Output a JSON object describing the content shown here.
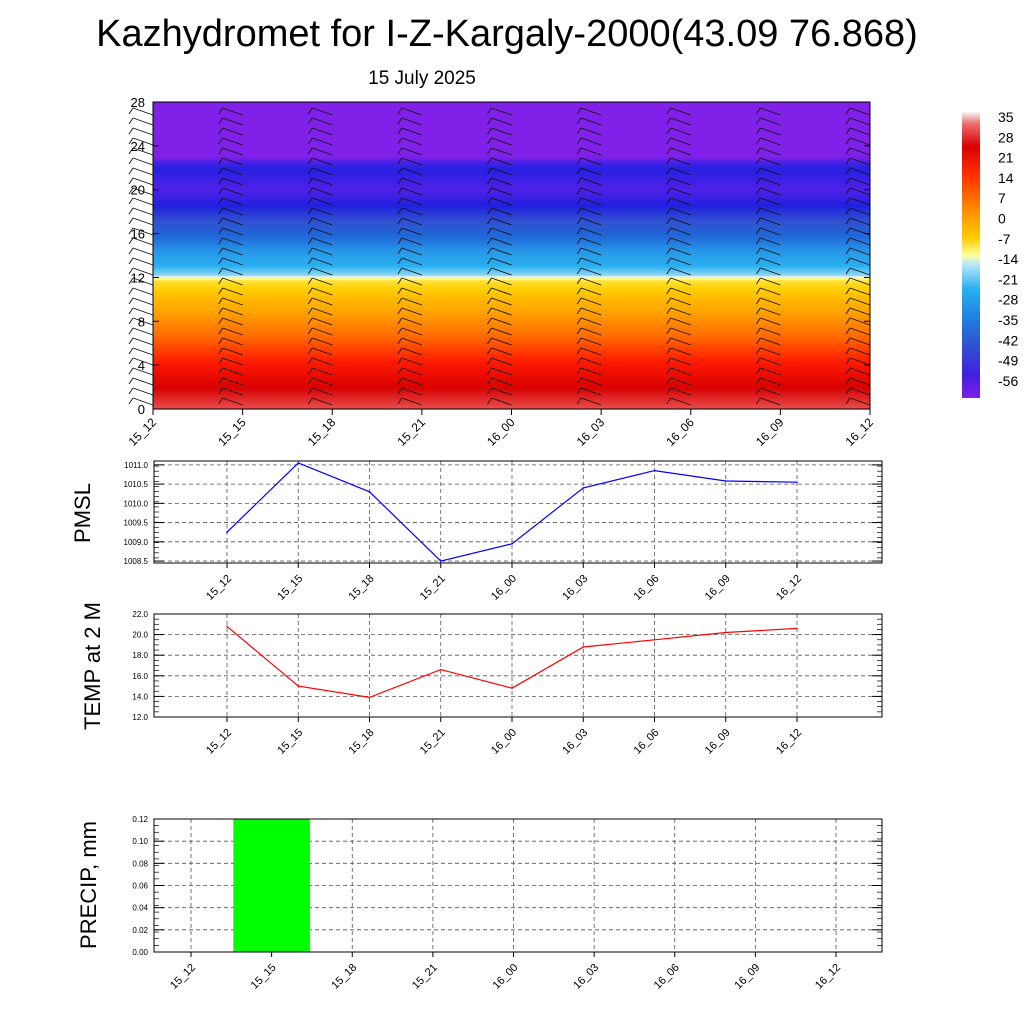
{
  "title": "Kazhydromet for I-Z-Kargaly-2000(43.09 76.868)",
  "subtitle": "15 July 2025",
  "chart_data": [
    {
      "type": "heatmap",
      "name": "temperature-height cross-section",
      "x_categories": [
        "15_12",
        "15_15",
        "15_18",
        "15_21",
        "16_00",
        "16_03",
        "16_06",
        "16_09",
        "16_12"
      ],
      "y_ticks": [
        "0",
        "4",
        "8",
        "12",
        "16",
        "20",
        "24",
        "28"
      ],
      "ylim": [
        0,
        28
      ],
      "colorbar_labels": [
        "35",
        "28",
        "21",
        "14",
        "7",
        "0",
        "-7",
        "-14",
        "-21",
        "-28",
        "-35",
        "-42",
        "-49",
        "-56"
      ],
      "colorbar_range": [
        -60,
        38
      ],
      "approx_profile": [
        {
          "z": 0,
          "t": 33
        },
        {
          "z": 2,
          "t": 28
        },
        {
          "z": 4,
          "t": 22
        },
        {
          "z": 6,
          "t": 16
        },
        {
          "z": 8,
          "t": 10
        },
        {
          "z": 10,
          "t": 4
        },
        {
          "z": 11.8,
          "t": -3
        },
        {
          "z": 12.2,
          "t": -16
        },
        {
          "z": 14,
          "t": -26
        },
        {
          "z": 16,
          "t": -36
        },
        {
          "z": 18,
          "t": -46
        },
        {
          "z": 20,
          "t": -56
        },
        {
          "z": 22,
          "t": -50
        },
        {
          "z": 23,
          "t": -60
        },
        {
          "z": 28,
          "t": -60
        }
      ]
    },
    {
      "type": "line",
      "ylabel": "PMSL",
      "categories": [
        "15_12",
        "15_15",
        "15_18",
        "15_21",
        "16_00",
        "16_03",
        "16_06",
        "16_09",
        "16_12"
      ],
      "y_ticks": [
        "1011.0",
        "1010.5",
        "1010.0",
        "1009.5",
        "1009.0",
        "1008.5"
      ],
      "ylim": [
        1008.45,
        1011.1
      ],
      "values": [
        1009.25,
        1011.05,
        1010.3,
        1008.5,
        1008.95,
        1010.4,
        1010.85,
        1010.58,
        1010.55
      ],
      "color": "#0000ff"
    },
    {
      "type": "line",
      "ylabel": "TEMP at 2 M",
      "categories": [
        "15_12",
        "15_15",
        "15_18",
        "15_21",
        "16_00",
        "16_03",
        "16_06",
        "16_09",
        "16_12"
      ],
      "y_ticks": [
        "22.0",
        "20.0",
        "18.0",
        "16.0",
        "14.0",
        "12.0"
      ],
      "ylim": [
        12,
        22
      ],
      "values": [
        20.8,
        15.0,
        13.9,
        16.6,
        14.8,
        18.8,
        19.5,
        20.2,
        20.6
      ],
      "color": "#ff0000"
    },
    {
      "type": "bar",
      "ylabel": "PRECIP, mm",
      "categories": [
        "15_12",
        "15_15",
        "15_18",
        "15_21",
        "16_00",
        "16_03",
        "16_06",
        "16_09",
        "16_12"
      ],
      "y_ticks": [
        "0.12",
        "0.10",
        "0.08",
        "0.06",
        "0.04",
        "0.02",
        "0.00"
      ],
      "ylim": [
        0,
        0.12
      ],
      "values": [
        0,
        0.12,
        0,
        0,
        0,
        0,
        0,
        0,
        0
      ],
      "color": "#00ff00"
    }
  ]
}
